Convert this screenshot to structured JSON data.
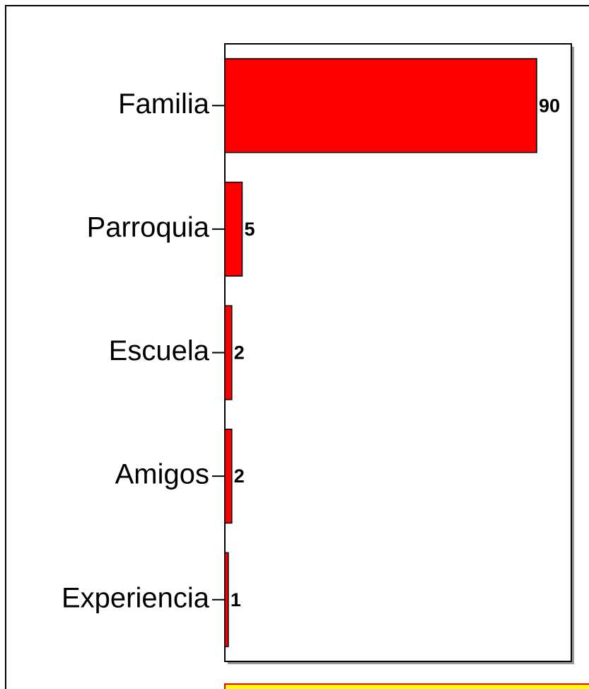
{
  "chart_data": {
    "type": "bar",
    "orientation": "horizontal",
    "categories": [
      "Familia",
      "Parroquia",
      "Escuela",
      "Amigos",
      "Experiencia"
    ],
    "values": [
      90,
      5,
      2,
      2,
      1
    ],
    "color": "#ff0000",
    "xlim": [
      0,
      100
    ]
  }
}
